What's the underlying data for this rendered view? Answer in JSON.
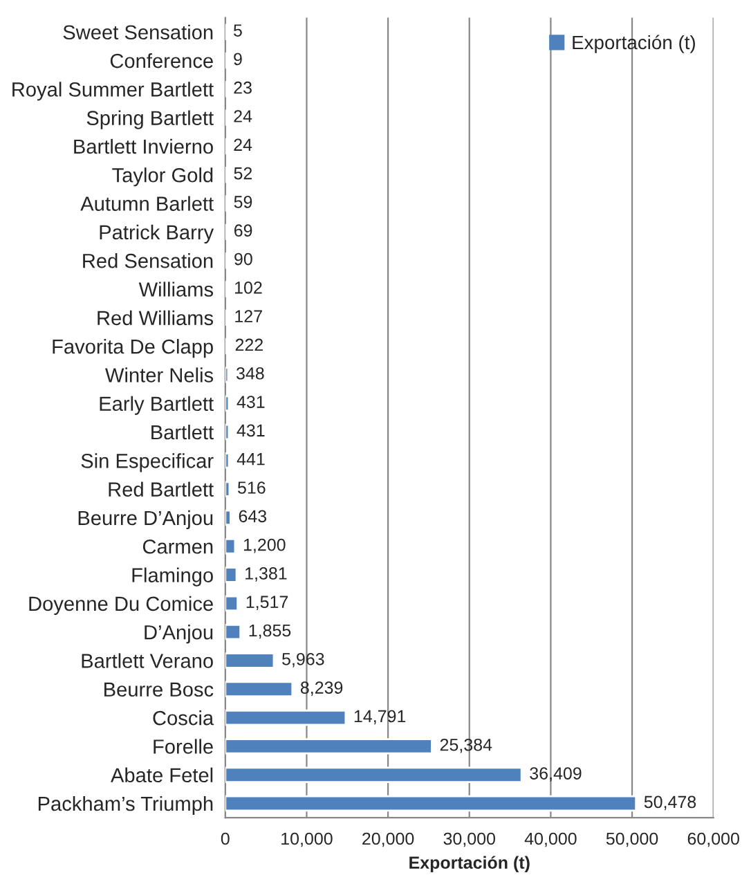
{
  "chart_data": {
    "type": "bar",
    "orientation": "horizontal",
    "xlabel": "Exportación (t)",
    "categories": [
      "Sweet Sensation",
      "Conference",
      "Royal Summer Bartlett",
      "Spring Bartlett",
      "Bartlett Invierno",
      "Taylor Gold",
      "Autumn Barlett",
      "Patrick Barry",
      "Red Sensation",
      "Williams",
      "Red Williams",
      "Favorita De Clapp",
      "Winter Nelis",
      "Early Bartlett",
      "Bartlett",
      "Sin Especificar",
      "Red Bartlett",
      "Beurre D’Anjou",
      "Carmen",
      "Flamingo",
      "Doyenne Du Comice",
      "D’Anjou",
      "Bartlett Verano",
      "Beurre Bosc",
      "Coscia",
      "Forelle",
      "Abate Fetel",
      "Packham’s Triumph"
    ],
    "series": [
      {
        "name": "Exportación (t)",
        "color": "#4f81bd",
        "values": [
          5,
          9,
          23,
          24,
          24,
          52,
          59,
          69,
          90,
          102,
          127,
          222,
          348,
          431,
          431,
          441,
          516,
          643,
          1200,
          1381,
          1517,
          1855,
          5963,
          8239,
          14791,
          25384,
          36409,
          50478
        ],
        "value_labels": [
          "5",
          "9",
          "23",
          "24",
          "24",
          "52",
          "59",
          "69",
          "90",
          "102",
          "127",
          "222",
          "348",
          "431",
          "431",
          "441",
          "516",
          "643",
          "1,200",
          "1,381",
          "1,517",
          "1,855",
          "5,963",
          "8,239",
          "14,791",
          "25,384",
          "36,409",
          "50,478"
        ]
      }
    ],
    "xlim": [
      0,
      60000
    ],
    "xticks": [
      0,
      {
        "value": 10000,
        "label": "10,000"
      },
      {
        "value": 20000,
        "label": "20,000"
      },
      {
        "value": 30000,
        "label": "30,000"
      },
      {
        "value": 40000,
        "label": "40,000"
      },
      {
        "value": 50000,
        "label": "50,000"
      },
      {
        "value": 60000,
        "label": "60,000"
      }
    ],
    "grid": "x",
    "legend": "top right"
  }
}
